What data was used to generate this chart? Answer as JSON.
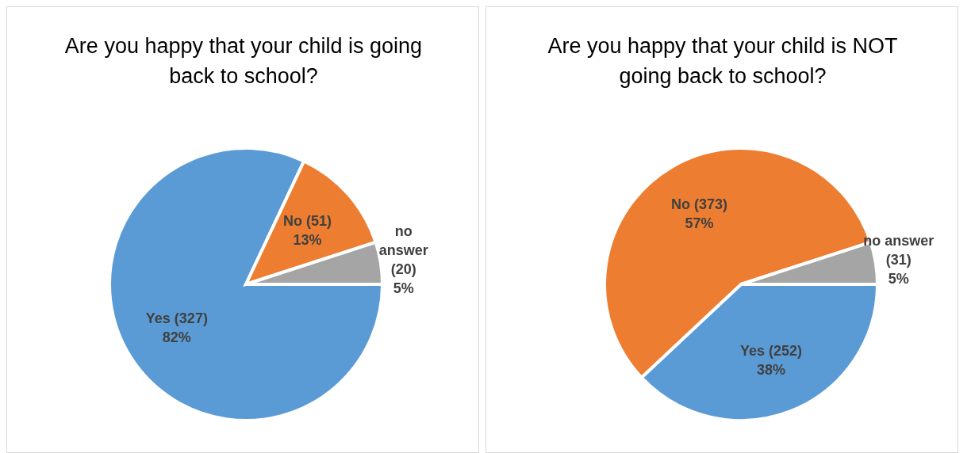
{
  "chart_data": [
    {
      "type": "pie",
      "title": "Are you happy that your child is going back to school?",
      "categories": [
        "Yes (327)",
        "No (51)",
        "no answer (20)"
      ],
      "values": [
        82,
        13,
        5
      ],
      "colors": [
        "#5b9bd5",
        "#ed7d31",
        "#a5a5a5"
      ],
      "value_labels": [
        "82%",
        "13%",
        "5%"
      ],
      "legend": false
    },
    {
      "type": "pie",
      "title": "Are you happy that your child is NOT going back to school?",
      "categories": [
        "Yes (252)",
        "No (373)",
        "no answer (31)"
      ],
      "values": [
        38,
        57,
        5
      ],
      "colors": [
        "#5b9bd5",
        "#ed7d31",
        "#a5a5a5"
      ],
      "value_labels": [
        "38%",
        "57%",
        "5%"
      ],
      "legend": false
    }
  ]
}
